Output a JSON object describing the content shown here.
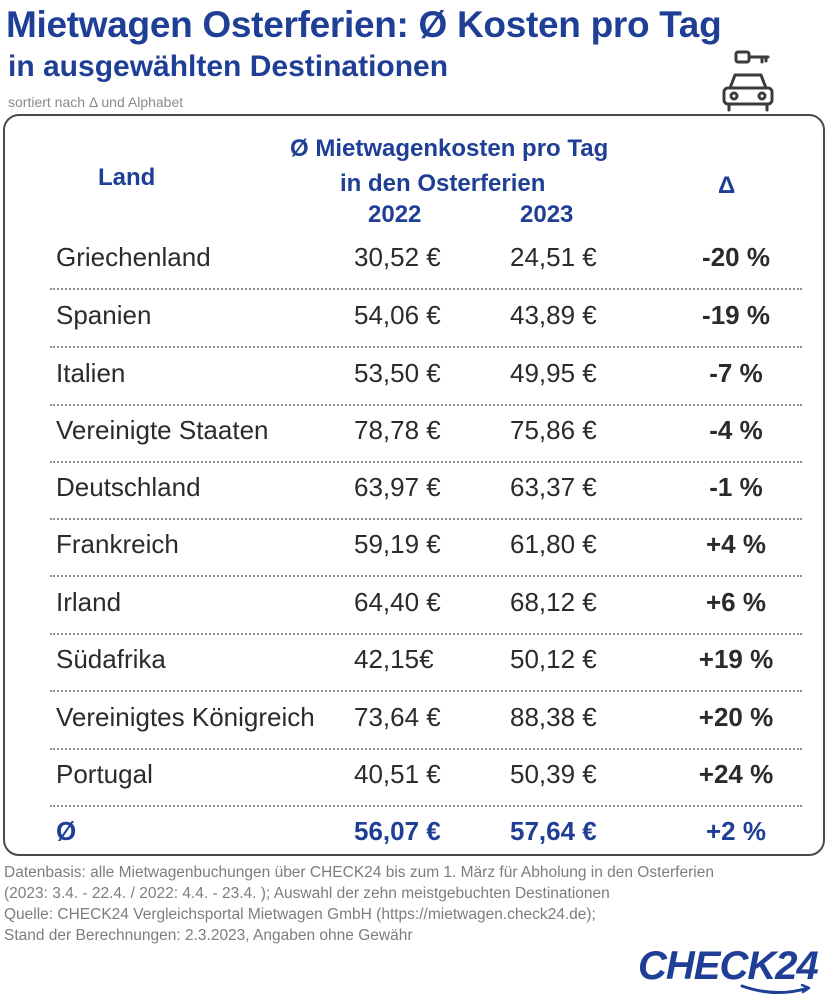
{
  "title": "Mietwagen Osterferien: Ø Kosten pro Tag",
  "subtitle": "in ausgewählten Destinationen",
  "sort_note": "sortiert nach Δ und Alphabet",
  "icon": "car-key-icon",
  "colors": {
    "primary_blue": "#1f3f96",
    "text": "#2b2b2b",
    "footnote": "#7d7d7d"
  },
  "chart_data": {
    "type": "table",
    "headers": {
      "land": "Land",
      "cost_line1": "Ø Mietwagenkosten pro Tag",
      "cost_line2": "in  den Osterferien",
      "year1": "2022",
      "year2": "2023",
      "delta": "Δ"
    },
    "rows": [
      {
        "land": "Griechenland",
        "v2022": "30,52 €",
        "v2023": "24,51 €",
        "delta": "-20 %"
      },
      {
        "land": "Spanien",
        "v2022": "54,06 €",
        "v2023": "43,89 €",
        "delta": "-19 %"
      },
      {
        "land": "Italien",
        "v2022": "53,50 €",
        "v2023": "49,95 €",
        "delta": "-7 %"
      },
      {
        "land": "Vereinigte Staaten",
        "v2022": "78,78 €",
        "v2023": "75,86 €",
        "delta": "-4 %"
      },
      {
        "land": "Deutschland",
        "v2022": "63,97 €",
        "v2023": "63,37 €",
        "delta": "-1 %"
      },
      {
        "land": "Frankreich",
        "v2022": "59,19 €",
        "v2023": "61,80 €",
        "delta": "+4 %"
      },
      {
        "land": "Irland",
        "v2022": "64,40 €",
        "v2023": "68,12 €",
        "delta": "+6 %"
      },
      {
        "land": "Südafrika",
        "v2022": "42,15€",
        "v2023": "50,12 €",
        "delta": "+19 %"
      },
      {
        "land": "Vereinigtes Königreich",
        "v2022": "73,64 €",
        "v2023": "88,38 €",
        "delta": "+20 %"
      },
      {
        "land": "Portugal",
        "v2022": "40,51 €",
        "v2023": "50,39 €",
        "delta": "+24 %"
      }
    ],
    "average": {
      "land": "Ø",
      "v2022": "56,07 €",
      "v2023": "57,64 €",
      "delta": "+2 %"
    }
  },
  "footer": {
    "line1": "Datenbasis: alle Mietwagenbuchungen über CHECK24 bis zum 1. März für Abholung in den Osterferien",
    "line2": "(2023: 3.4. - 22.4. / 2022: 4.4. - 23.4. ); Auswahl der zehn meistgebuchten Destinationen",
    "line3": "Quelle: CHECK24 Vergleichsportal Mietwagen GmbH (https://mietwagen.check24.de);",
    "line4": "Stand der Berechnungen: 2.3.2023, Angaben ohne Gewähr"
  },
  "logo": "CHECK24"
}
